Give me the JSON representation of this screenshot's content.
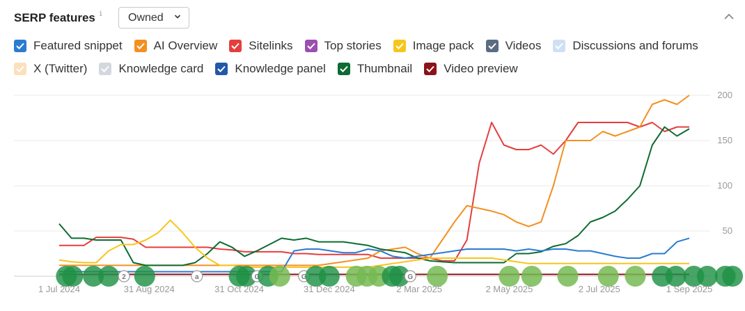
{
  "header": {
    "title": "SERP features",
    "info_glyph": "i",
    "dropdown_value": "Owned",
    "dropdown_icon": "chevron-down-icon",
    "collapse_icon": "chevron-up-icon"
  },
  "legend_rows": [
    [
      {
        "label": "Featured snippet",
        "color": "#2b7bd1",
        "checked": true
      },
      {
        "label": "AI Overview",
        "color": "#f39020",
        "checked": true
      },
      {
        "label": "Sitelinks",
        "color": "#e53d3d",
        "checked": true
      },
      {
        "label": "Top stories",
        "color": "#9b4fb0",
        "checked": true
      },
      {
        "label": "Image pack",
        "color": "#f7c61b",
        "checked": true
      },
      {
        "label": "Videos",
        "color": "#5a6b82",
        "checked": true
      },
      {
        "label": "Discussions and forums",
        "color": "#cfe0f3",
        "checked": true
      }
    ],
    [
      {
        "label": "X (Twitter)",
        "color": "#fbe0bd",
        "checked": true
      },
      {
        "label": "Knowledge card",
        "color": "#d3d8de",
        "checked": true
      },
      {
        "label": "Knowledge panel",
        "color": "#2358a8",
        "checked": true
      },
      {
        "label": "Thumbnail",
        "color": "#0d6b33",
        "checked": true
      },
      {
        "label": "Video preview",
        "color": "#8b1218",
        "checked": true
      }
    ]
  ],
  "chart_data": {
    "type": "line",
    "x_ticks": [
      "1 Jul 2024",
      "31 Aug 2024",
      "31 Oct 2024",
      "31 Dec 2024",
      "2 Mar 2025",
      "2 May 2025",
      "2 Jul 2025",
      "1 Sep 2025"
    ],
    "y_ticks": [
      "0",
      "50",
      "100",
      "150",
      "200"
    ],
    "ylim": [
      0,
      200
    ],
    "grid": true,
    "y_axis_side": "right",
    "series": [
      {
        "name": "Sitelinks",
        "color": "#e53d3d",
        "values": [
          34,
          34,
          34,
          43,
          43,
          43,
          41,
          32,
          32,
          32,
          32,
          32,
          32,
          30,
          29,
          27,
          27,
          27,
          27,
          25,
          25,
          24,
          24,
          24,
          24,
          24,
          20,
          20,
          20,
          20,
          20,
          17,
          17,
          40,
          125,
          170,
          145,
          140,
          140,
          145,
          135,
          150,
          170,
          170,
          170,
          170,
          170,
          165,
          170,
          160,
          165,
          165
        ]
      },
      {
        "name": "AI Overview",
        "color": "#f39020",
        "values": [
          12,
          12,
          12,
          12,
          12,
          12,
          12,
          12,
          12,
          12,
          12,
          12,
          12,
          12,
          12,
          12,
          12,
          12,
          12,
          12,
          12,
          12,
          14,
          16,
          18,
          20,
          28,
          30,
          32,
          25,
          20,
          40,
          60,
          78,
          75,
          72,
          68,
          60,
          55,
          60,
          100,
          150,
          150,
          150,
          160,
          155,
          160,
          165,
          190,
          195,
          190,
          200
        ]
      },
      {
        "name": "Thumbnail",
        "color": "#0d6b33",
        "values": [
          58,
          42,
          42,
          40,
          40,
          40,
          15,
          12,
          12,
          12,
          12,
          15,
          25,
          38,
          32,
          22,
          28,
          35,
          42,
          40,
          42,
          38,
          38,
          38,
          36,
          34,
          30,
          28,
          26,
          20,
          17,
          16,
          15,
          15,
          15,
          15,
          15,
          25,
          25,
          27,
          33,
          36,
          45,
          60,
          65,
          72,
          85,
          100,
          145,
          165,
          155,
          163
        ]
      },
      {
        "name": "Image pack",
        "color": "#f7c61b",
        "values": [
          18,
          16,
          15,
          15,
          28,
          35,
          35,
          40,
          48,
          62,
          48,
          32,
          20,
          12,
          12,
          10,
          10,
          10,
          10,
          10,
          10,
          10,
          10,
          10,
          10,
          10,
          12,
          14,
          16,
          18,
          20,
          20,
          20,
          20,
          20,
          20,
          18,
          16,
          14,
          14,
          14,
          14,
          14,
          14,
          14,
          14,
          14,
          14,
          14,
          14,
          14,
          14
        ]
      },
      {
        "name": "Featured snippet",
        "color": "#2b7bd1",
        "values": [
          5,
          5,
          5,
          5,
          5,
          5,
          5,
          5,
          5,
          5,
          5,
          5,
          5,
          5,
          5,
          5,
          5,
          5,
          5,
          28,
          30,
          30,
          28,
          26,
          26,
          30,
          28,
          22,
          20,
          22,
          24,
          26,
          28,
          30,
          30,
          30,
          30,
          28,
          30,
          28,
          30,
          30,
          28,
          28,
          25,
          22,
          20,
          20,
          25,
          25,
          38,
          42
        ]
      },
      {
        "name": "Video preview",
        "color": "#8b1218",
        "values": [
          2,
          2,
          2,
          2,
          2,
          2,
          2,
          2,
          2,
          2,
          2,
          2,
          2,
          2,
          2,
          2,
          2,
          2,
          2,
          2,
          2,
          2,
          2,
          2,
          2,
          2,
          2,
          2,
          2,
          2,
          2,
          2,
          2,
          2,
          2,
          2,
          2,
          2,
          2,
          2,
          2,
          2,
          2,
          2,
          2,
          2,
          2,
          2,
          2,
          2,
          2,
          2
        ]
      }
    ],
    "markers": [
      {
        "x": 0.08,
        "kind": "bubble-dark",
        "label": ""
      },
      {
        "x": 0.15,
        "kind": "bubble-dark",
        "label": ""
      },
      {
        "x": 0.38,
        "kind": "bubble-dark",
        "label": ""
      },
      {
        "x": 0.55,
        "kind": "bubble-dark",
        "label": ""
      },
      {
        "x": 0.72,
        "kind": "bubble-small",
        "label": "2"
      },
      {
        "x": 0.95,
        "kind": "bubble-dark",
        "label": ""
      },
      {
        "x": 1.53,
        "kind": "bubble-small",
        "label": "a"
      },
      {
        "x": 2.0,
        "kind": "bubble-dark",
        "label": ""
      },
      {
        "x": 2.08,
        "kind": "bubble-dark",
        "label": ""
      },
      {
        "x": 2.2,
        "kind": "bubble-small",
        "label": "G"
      },
      {
        "x": 2.32,
        "kind": "bubble-dark",
        "label": ""
      },
      {
        "x": 2.45,
        "kind": "bubble-light",
        "label": ""
      },
      {
        "x": 2.72,
        "kind": "bubble-small",
        "label": "G"
      },
      {
        "x": 2.85,
        "kind": "bubble-dark",
        "label": ""
      },
      {
        "x": 3.0,
        "kind": "bubble-dark",
        "label": ""
      },
      {
        "x": 3.3,
        "kind": "bubble-light",
        "label": ""
      },
      {
        "x": 3.42,
        "kind": "bubble-light",
        "label": ""
      },
      {
        "x": 3.55,
        "kind": "bubble-light",
        "label": ""
      },
      {
        "x": 3.7,
        "kind": "bubble-dark",
        "label": ""
      },
      {
        "x": 3.78,
        "kind": "bubble-dark",
        "label": ""
      },
      {
        "x": 3.9,
        "kind": "bubble-small",
        "label": "G"
      },
      {
        "x": 4.2,
        "kind": "bubble-light",
        "label": ""
      },
      {
        "x": 5.0,
        "kind": "bubble-light",
        "label": ""
      },
      {
        "x": 5.25,
        "kind": "bubble-light",
        "label": ""
      },
      {
        "x": 5.65,
        "kind": "bubble-light",
        "label": ""
      },
      {
        "x": 6.1,
        "kind": "bubble-light",
        "label": ""
      },
      {
        "x": 6.4,
        "kind": "bubble-light",
        "label": ""
      },
      {
        "x": 6.7,
        "kind": "bubble-dark",
        "label": ""
      },
      {
        "x": 6.85,
        "kind": "bubble-dark",
        "label": ""
      },
      {
        "x": 7.05,
        "kind": "bubble-dark",
        "label": ""
      },
      {
        "x": 7.2,
        "kind": "bubble-dark",
        "label": ""
      },
      {
        "x": 7.4,
        "kind": "bubble-dark",
        "label": ""
      },
      {
        "x": 7.48,
        "kind": "bubble-dark",
        "label": ""
      }
    ]
  }
}
